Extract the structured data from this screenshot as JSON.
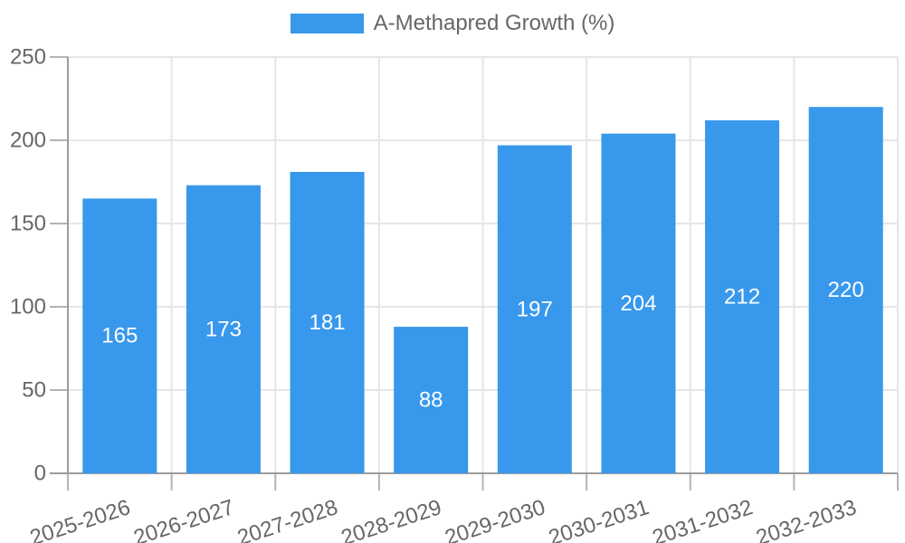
{
  "legend": {
    "label": "A-Methapred Growth (%)",
    "swatch_color": "#3898ec"
  },
  "chart_data": {
    "type": "bar",
    "title": "",
    "xlabel": "",
    "ylabel": "",
    "categories": [
      "2025-2026",
      "2026-2027",
      "2027-2028",
      "2028-2029",
      "2029-2030",
      "2030-2031",
      "2031-2032",
      "2032-2033"
    ],
    "series": [
      {
        "name": "A-Methapred Growth (%)",
        "values": [
          165,
          173,
          181,
          88,
          197,
          204,
          212,
          220
        ]
      }
    ],
    "value_labels_shown": true,
    "ylim": [
      0,
      250
    ],
    "yticks": [
      0,
      50,
      100,
      150,
      200,
      250
    ],
    "grid": true,
    "legend_position": "top-center",
    "x_label_rotation_deg": -18,
    "colors": {
      "bar": "#3898ec",
      "value_label": "#ffffff",
      "axis_line": "#9c9c9c",
      "tick_line": "#b3b3b3",
      "grid_line": "#e6e6e6",
      "tick_label": "#666666"
    }
  }
}
